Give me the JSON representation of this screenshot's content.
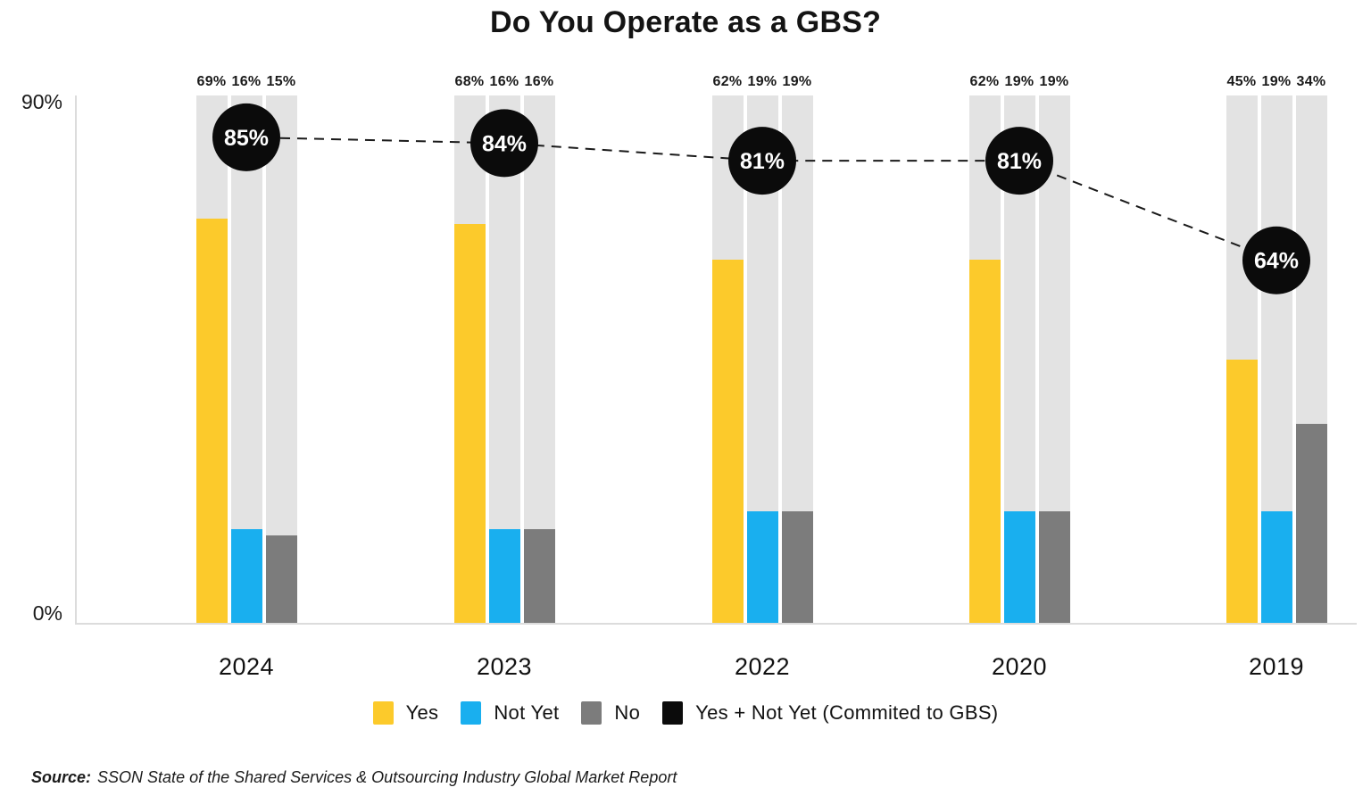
{
  "title": "Do You Operate as a GBS?",
  "y_axis": {
    "top": "90%",
    "bottom": "0%"
  },
  "chart_data": {
    "type": "bar",
    "title": "Do You Operate as a GBS?",
    "categories": [
      "2024",
      "2023",
      "2022",
      "2020",
      "2019"
    ],
    "series": [
      {
        "name": "Yes",
        "color": "#FCCA2B",
        "values": [
          69,
          68,
          62,
          62,
          45
        ]
      },
      {
        "name": "Not Yet",
        "color": "#19AFEF",
        "values": [
          16,
          16,
          19,
          19,
          19
        ]
      },
      {
        "name": "No",
        "color": "#7C7C7C",
        "values": [
          15,
          16,
          19,
          19,
          34
        ]
      }
    ],
    "trend_series": {
      "name": "Yes + Not Yet (Commited to GBS)",
      "color": "#0B0B0B",
      "values": [
        85,
        84,
        81,
        81,
        64
      ]
    },
    "value_suffix": "%",
    "ylim": [
      0,
      90
    ],
    "y_tick_labels": [
      "90%",
      "0%"
    ],
    "grid": "off",
    "legend_position": "bottom"
  },
  "legend": {
    "items": [
      {
        "label": "Yes",
        "color": "#FCCA2B"
      },
      {
        "label": "Not Yet",
        "color": "#19AFEF"
      },
      {
        "label": "No",
        "color": "#7C7C7C"
      },
      {
        "label": "Yes + Not Yet (Commited to GBS)",
        "color": "#0B0B0B"
      }
    ]
  },
  "source": {
    "label": "Source:",
    "text": "SSON State of the Shared Services & Outsourcing Industry Global Market Report"
  },
  "colors": {
    "bar_track": "#E3E3E3",
    "axis_line": "#DCDCDC",
    "label_text": "#1A1A1A",
    "trend_line": "#1A1A1A",
    "trend_point_text": "#FFFFFF"
  }
}
